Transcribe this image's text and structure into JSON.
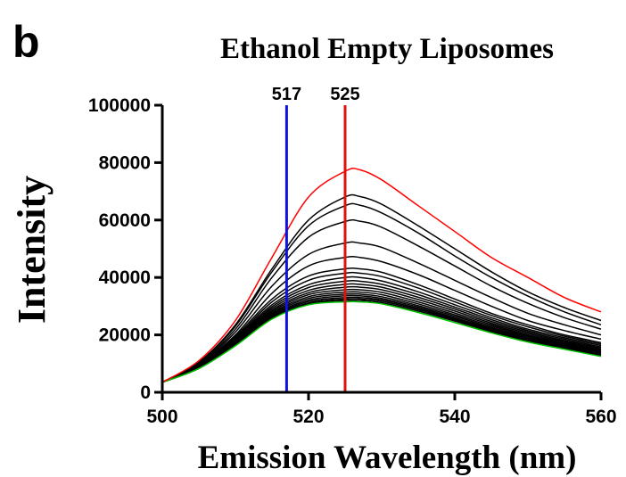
{
  "panel_label": "b",
  "chart_data": {
    "type": "line",
    "title": "Ethanol Empty Liposomes",
    "xlabel": "Emission Wavelength (nm)",
    "ylabel": "Intensity",
    "xlim": [
      500,
      560
    ],
    "ylim": [
      0,
      100000
    ],
    "x_ticks": [
      500,
      520,
      540,
      560
    ],
    "y_ticks": [
      0,
      20000,
      40000,
      60000,
      80000,
      100000
    ],
    "grid": false,
    "vertical_markers": [
      {
        "label": "517",
        "x": 517,
        "color": "#1010e0"
      },
      {
        "label": "525",
        "x": 525,
        "color": "#e01010"
      }
    ],
    "x": [
      500,
      505,
      510,
      515,
      520,
      525,
      527,
      530,
      535,
      540,
      545,
      550,
      555,
      560
    ],
    "series": [
      {
        "color": "#ff0000",
        "values": [
          3500,
          11000,
          25000,
          47000,
          68000,
          77000,
          77500,
          74000,
          65000,
          56000,
          47000,
          40000,
          33000,
          28000
        ]
      },
      {
        "color": "#000000",
        "values": [
          3500,
          10500,
          23500,
          43000,
          60000,
          68000,
          68200,
          65500,
          58000,
          50000,
          42000,
          35000,
          29500,
          25000
        ]
      },
      {
        "color": "#000000",
        "values": [
          3500,
          10300,
          23000,
          42000,
          58000,
          65000,
          65200,
          62500,
          55500,
          47500,
          40000,
          33500,
          28000,
          23500
        ]
      },
      {
        "color": "#000000",
        "values": [
          3500,
          10000,
          22000,
          40000,
          54000,
          59500,
          59600,
          57500,
          51000,
          44000,
          37000,
          31000,
          26000,
          22000
        ]
      },
      {
        "color": "#000000",
        "values": [
          3500,
          9700,
          21000,
          37000,
          48000,
          52000,
          52000,
          50500,
          45000,
          39000,
          33000,
          27500,
          23500,
          20000
        ]
      },
      {
        "color": "#000000",
        "values": [
          3500,
          9500,
          20000,
          34500,
          44000,
          47000,
          47000,
          45500,
          41000,
          35500,
          30000,
          25000,
          21500,
          18500
        ]
      },
      {
        "color": "#000000",
        "values": [
          3500,
          9300,
          19500,
          32500,
          40500,
          43000,
          43000,
          41800,
          37500,
          32500,
          27500,
          23500,
          20000,
          17300
        ]
      },
      {
        "color": "#000000",
        "values": [
          3500,
          9200,
          19000,
          31500,
          39000,
          41500,
          41500,
          40300,
          36300,
          31500,
          26800,
          22800,
          19500,
          16800
        ]
      },
      {
        "color": "#000000",
        "values": [
          3500,
          9100,
          18700,
          30500,
          37500,
          40000,
          40000,
          38800,
          35000,
          30500,
          26000,
          22000,
          19000,
          16300
        ]
      },
      {
        "color": "#000000",
        "values": [
          3500,
          9000,
          18400,
          29800,
          36500,
          38700,
          38700,
          37600,
          34000,
          29700,
          25300,
          21500,
          18500,
          15800
        ]
      },
      {
        "color": "#000000",
        "values": [
          3500,
          8900,
          18100,
          29200,
          35500,
          37600,
          37600,
          36600,
          33100,
          29000,
          24700,
          21000,
          18000,
          15400
        ]
      },
      {
        "color": "#000000",
        "values": [
          3500,
          8800,
          17800,
          28600,
          34700,
          36600,
          36600,
          35700,
          32300,
          28300,
          24100,
          20500,
          17600,
          15000
        ]
      },
      {
        "color": "#000000",
        "values": [
          3500,
          8700,
          17500,
          28100,
          34000,
          35700,
          35700,
          34800,
          31500,
          27600,
          23600,
          20000,
          17200,
          14600
        ]
      },
      {
        "color": "#000000",
        "values": [
          3500,
          8600,
          17300,
          27600,
          33300,
          34900,
          34900,
          34000,
          30800,
          27000,
          23100,
          19600,
          16800,
          14300
        ]
      },
      {
        "color": "#000000",
        "values": [
          3500,
          8500,
          17100,
          27200,
          32700,
          34200,
          34200,
          33300,
          30200,
          26500,
          22600,
          19200,
          16500,
          14000
        ]
      },
      {
        "color": "#000000",
        "values": [
          3500,
          8450,
          16900,
          26800,
          32100,
          33600,
          33600,
          32700,
          29700,
          26000,
          22200,
          18800,
          16200,
          13700
        ]
      },
      {
        "color": "#000000",
        "values": [
          3500,
          8400,
          16700,
          26400,
          31600,
          33000,
          33000,
          32200,
          29200,
          25600,
          21800,
          18500,
          15900,
          13400
        ]
      },
      {
        "color": "#000000",
        "values": [
          3500,
          8350,
          16500,
          26000,
          31100,
          32500,
          32500,
          31700,
          28800,
          25200,
          21500,
          18200,
          15600,
          13200
        ]
      },
      {
        "color": "#000000",
        "values": [
          3500,
          8300,
          16300,
          25700,
          30700,
          32000,
          32000,
          31200,
          28300,
          24800,
          21100,
          17900,
          15300,
          12900
        ]
      },
      {
        "color": "#00c000",
        "values": [
          3500,
          8300,
          16200,
          25500,
          30500,
          31500,
          31500,
          30800,
          27800,
          24300,
          20700,
          17500,
          15000,
          12500
        ]
      }
    ]
  }
}
